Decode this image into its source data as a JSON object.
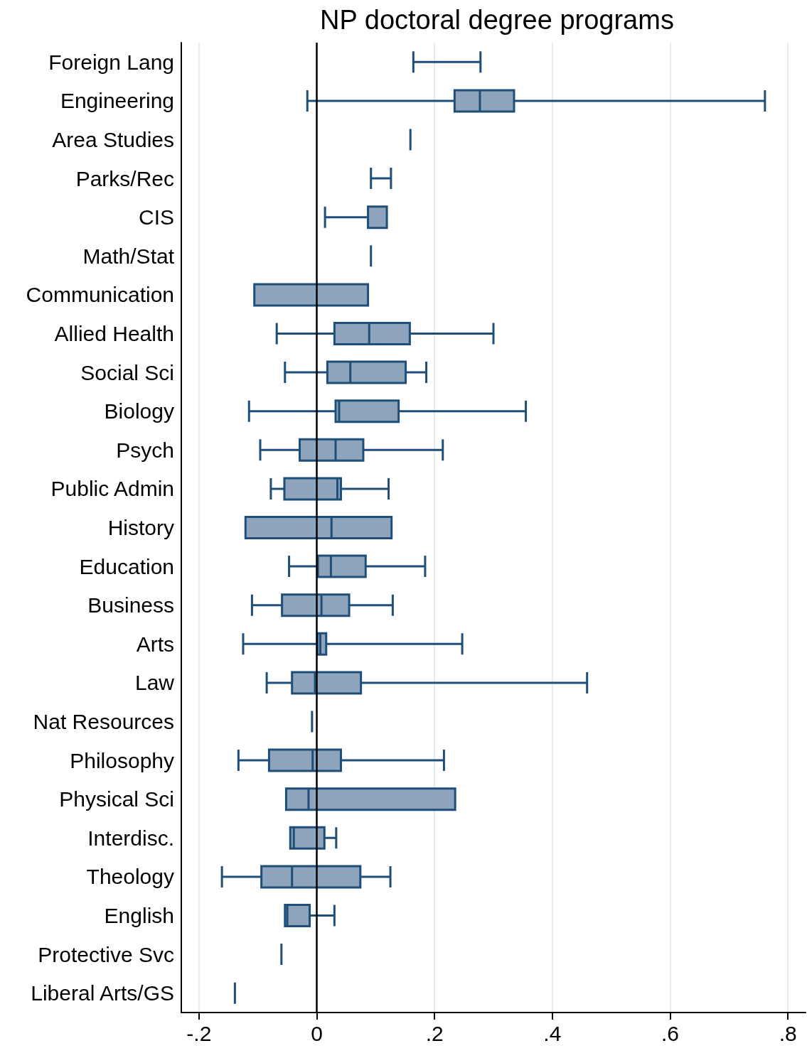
{
  "chart_data": {
    "type": "box",
    "title": "NP doctoral degree programs",
    "orientation": "horizontal",
    "categories": [
      "Foreign Lang",
      "Engineering",
      "Area Studies",
      "Parks/Rec",
      "CIS",
      "Math/Stat",
      "Communication",
      "Allied Health",
      "Social Sci",
      "Biology",
      "Psych",
      "Public Admin",
      "History",
      "Education",
      "Business",
      "Arts",
      "Law",
      "Nat Resources",
      "Philosophy",
      "Physical Sci",
      "Interdisc.",
      "Theology",
      "English",
      "Protective Svc",
      "Liberal Arts/GS"
    ],
    "series": [
      {
        "color": "#1f4e79",
        "boxes": [
          {
            "low": 0.164,
            "q1": 0.278,
            "median": 0.278,
            "q3": 0.278,
            "high": 0.278
          },
          {
            "low": -0.016,
            "q1": 0.234,
            "median": 0.277,
            "q3": 0.335,
            "high": 0.761
          },
          {
            "low": 0.159,
            "q1": 0.159,
            "median": 0.159,
            "q3": 0.159,
            "high": 0.159
          },
          {
            "low": 0.092,
            "q1": 0.126,
            "median": 0.126,
            "q3": 0.126,
            "high": 0.126
          },
          {
            "low": 0.014,
            "q1": 0.087,
            "median": 0.119,
            "q3": 0.119,
            "high": 0.119
          },
          {
            "low": 0.092,
            "q1": 0.092,
            "median": 0.092,
            "q3": 0.092,
            "high": 0.092
          },
          {
            "low": -0.106,
            "q1": -0.106,
            "median": 0.087,
            "q3": 0.087,
            "high": 0.087
          },
          {
            "low": -0.068,
            "q1": 0.03,
            "median": 0.089,
            "q3": 0.158,
            "high": 0.3
          },
          {
            "low": -0.054,
            "q1": 0.018,
            "median": 0.057,
            "q3": 0.151,
            "high": 0.186
          },
          {
            "low": -0.115,
            "q1": 0.032,
            "median": 0.038,
            "q3": 0.139,
            "high": 0.355
          },
          {
            "low": -0.096,
            "q1": -0.029,
            "median": 0.032,
            "q3": 0.079,
            "high": 0.214
          },
          {
            "low": -0.078,
            "q1": -0.055,
            "median": 0.035,
            "q3": 0.041,
            "high": 0.122
          },
          {
            "low": -0.121,
            "q1": -0.121,
            "median": 0.025,
            "q3": 0.127,
            "high": 0.127
          },
          {
            "low": -0.047,
            "q1": 0.002,
            "median": 0.024,
            "q3": 0.083,
            "high": 0.184
          },
          {
            "low": -0.11,
            "q1": -0.059,
            "median": 0.008,
            "q3": 0.055,
            "high": 0.129
          },
          {
            "low": -0.125,
            "q1": 0.001,
            "median": 0.006,
            "q3": 0.016,
            "high": 0.247
          },
          {
            "low": -0.085,
            "q1": -0.042,
            "median": -0.003,
            "q3": 0.075,
            "high": 0.459
          },
          {
            "low": -0.008,
            "q1": -0.008,
            "median": -0.008,
            "q3": -0.008,
            "high": -0.008
          },
          {
            "low": -0.133,
            "q1": -0.081,
            "median": -0.007,
            "q3": 0.041,
            "high": 0.216
          },
          {
            "low": -0.052,
            "q1": -0.052,
            "median": -0.014,
            "q3": 0.235,
            "high": 0.235
          },
          {
            "low": -0.045,
            "q1": -0.045,
            "median": -0.039,
            "q3": 0.013,
            "high": 0.033
          },
          {
            "low": -0.161,
            "q1": -0.094,
            "median": -0.042,
            "q3": 0.074,
            "high": 0.125
          },
          {
            "low": -0.054,
            "q1": -0.054,
            "median": -0.05,
            "q3": -0.012,
            "high": 0.03
          },
          {
            "low": -0.06,
            "q1": -0.06,
            "median": -0.06,
            "q3": -0.06,
            "high": -0.06
          },
          {
            "low": -0.139,
            "q1": -0.139,
            "median": -0.139,
            "q3": -0.139,
            "high": -0.139
          }
        ]
      }
    ],
    "xlim": [
      -0.23,
      0.83
    ],
    "xticks": [
      {
        "value": -0.2,
        "label": "-.2"
      },
      0,
      {
        "value": 0.2,
        "label": ".2"
      },
      {
        "value": 0.4,
        "label": ".4"
      },
      {
        "value": 0.6,
        "label": ".6"
      },
      {
        "value": 0.8,
        "label": ".8"
      }
    ],
    "ref_lines": [
      {
        "axis": "x",
        "value": 0,
        "color": "#000000"
      }
    ],
    "grid": "x"
  }
}
